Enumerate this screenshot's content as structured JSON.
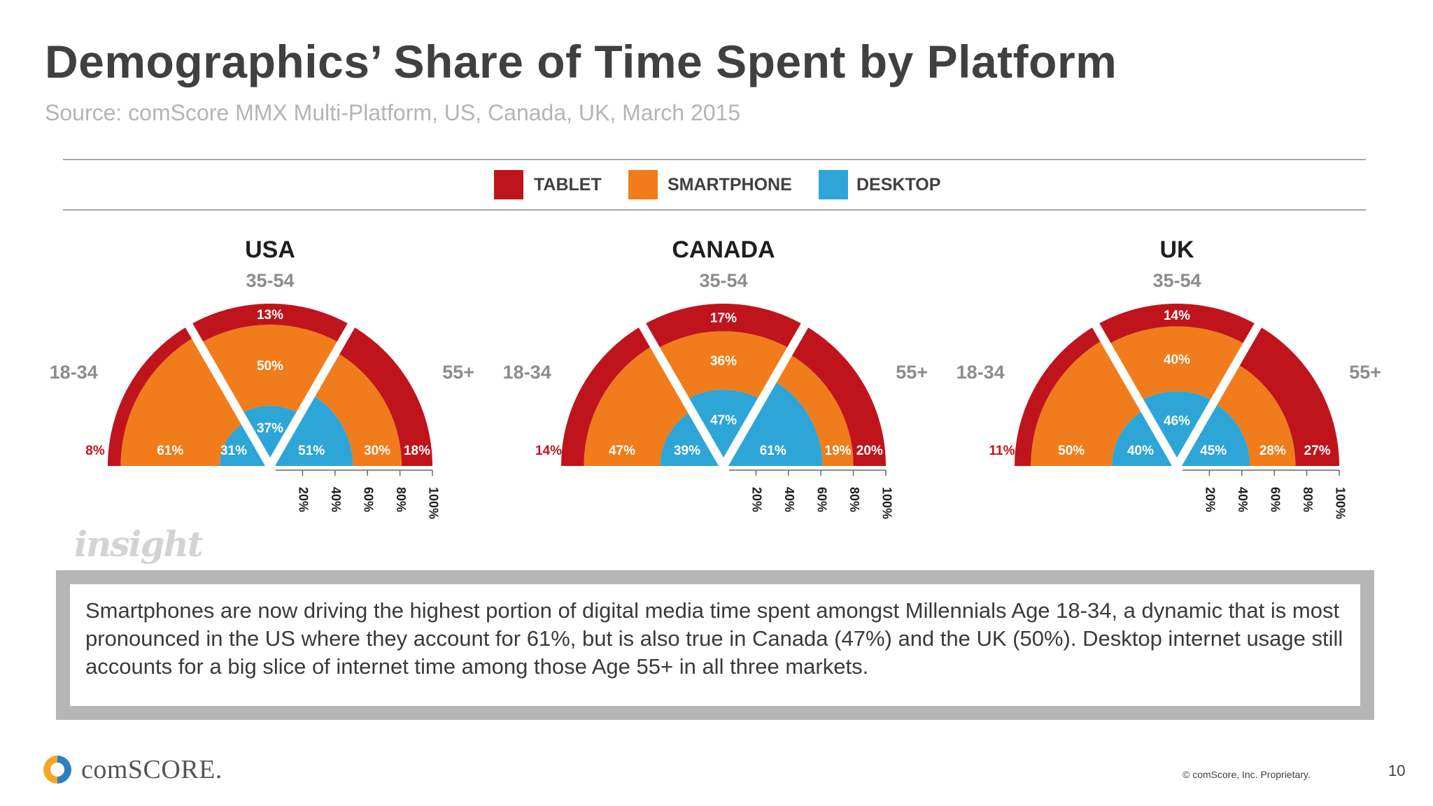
{
  "title": "Demographics’ Share of Time Spent by Platform",
  "source": "Source: comScore MMX Multi-Platform, US, Canada, UK, March 2015",
  "colors": {
    "tablet": "#c0141d",
    "smartphone": "#f07c1b",
    "desktop": "#2ea5d7",
    "text_dark": "#404040",
    "text_gray": "#8c8c8c"
  },
  "chart_data": [
    {
      "type": "radial-stacked",
      "title": "USA",
      "legend": [
        "TABLET",
        "SMARTPHONE",
        "DESKTOP"
      ],
      "scale_ticks": [
        "20%",
        "40%",
        "60%",
        "80%",
        "100%"
      ],
      "segments": [
        {
          "label": "18-34",
          "desktop": 31,
          "smartphone": 61,
          "tablet": 8
        },
        {
          "label": "35-54",
          "desktop": 37,
          "smartphone": 50,
          "tablet": 13
        },
        {
          "label": "55+",
          "desktop": 51,
          "smartphone": 30,
          "tablet": 18
        }
      ]
    },
    {
      "type": "radial-stacked",
      "title": "CANADA",
      "legend": [
        "TABLET",
        "SMARTPHONE",
        "DESKTOP"
      ],
      "scale_ticks": [
        "20%",
        "40%",
        "60%",
        "80%",
        "100%"
      ],
      "segments": [
        {
          "label": "18-34",
          "desktop": 39,
          "smartphone": 47,
          "tablet": 14
        },
        {
          "label": "35-54",
          "desktop": 47,
          "smartphone": 36,
          "tablet": 17
        },
        {
          "label": "55+",
          "desktop": 61,
          "smartphone": 19,
          "tablet": 20
        }
      ]
    },
    {
      "type": "radial-stacked",
      "title": "UK",
      "legend": [
        "TABLET",
        "SMARTPHONE",
        "DESKTOP"
      ],
      "scale_ticks": [
        "20%",
        "40%",
        "60%",
        "80%",
        "100%"
      ],
      "segments": [
        {
          "label": "18-34",
          "desktop": 40,
          "smartphone": 50,
          "tablet": 11
        },
        {
          "label": "35-54",
          "desktop": 46,
          "smartphone": 40,
          "tablet": 14
        },
        {
          "label": "55+",
          "desktop": 45,
          "smartphone": 28,
          "tablet": 27
        }
      ]
    }
  ],
  "insight_logo": "insight",
  "callout_text": "Smartphones are now driving the highest portion of digital media time spent amongst Millennials Age 18-34, a dynamic that is most pronounced in the US where they account for 61%, but is also true in Canada (47%) and the UK (50%). Desktop internet usage still accounts for a big slice of internet time among those Age 55+ in all three markets.",
  "brand": "comSCORE.",
  "copyright": "© comScore, Inc. Proprietary.",
  "page_number": "10"
}
